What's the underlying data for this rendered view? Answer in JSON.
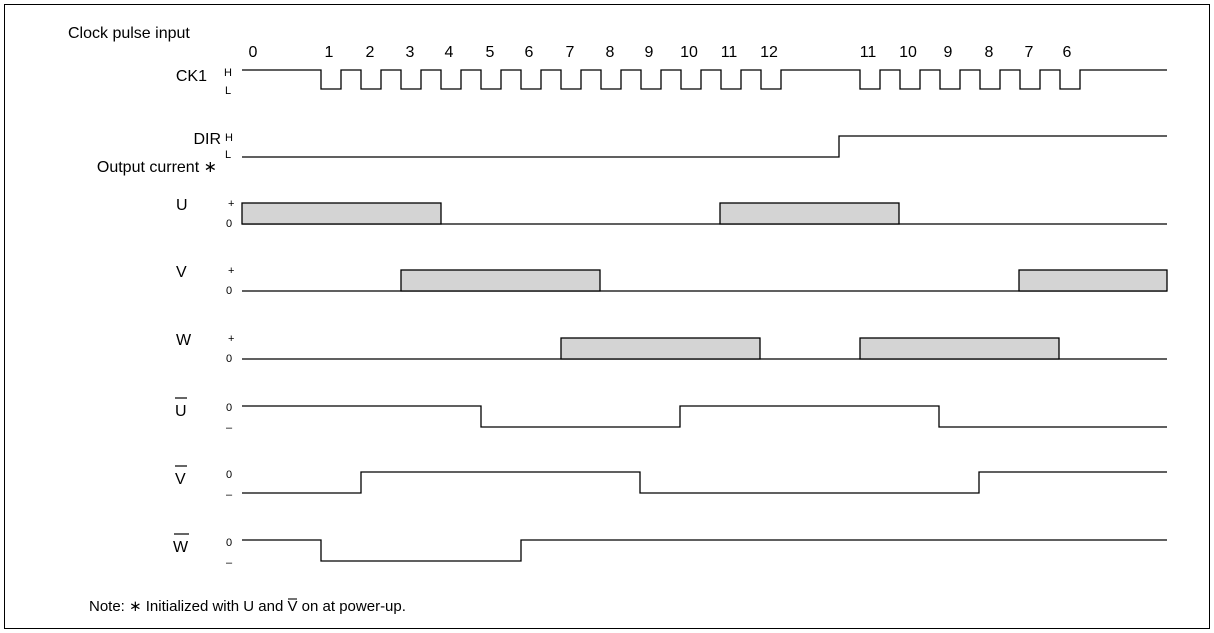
{
  "header": {
    "clock_label": "Clock pulse input",
    "output_label": "Output current ∗"
  },
  "clock_ticks": [
    "0",
    "1",
    "2",
    "3",
    "4",
    "5",
    "6",
    "7",
    "8",
    "9",
    "10",
    "11",
    "12",
    "11",
    "10",
    "9",
    "8",
    "7",
    "6"
  ],
  "signals": {
    "ck1": {
      "name": "CK1",
      "hi": "H",
      "lo": "L"
    },
    "dir": {
      "name": "DIR",
      "hi": "H",
      "lo": "L"
    },
    "u": {
      "name": "U",
      "hi": "+",
      "lo": "0"
    },
    "v": {
      "name": "V",
      "hi": "+",
      "lo": "0"
    },
    "w": {
      "name": "W",
      "hi": "+",
      "lo": "0"
    },
    "ubar": {
      "name": "U",
      "hi": "0",
      "lo": "–"
    },
    "vbar": {
      "name": "V",
      "hi": "0",
      "lo": "–"
    },
    "wbar": {
      "name": "W",
      "hi": "0",
      "lo": "–"
    }
  },
  "note": {
    "prefix": "Note:  ∗ Initialized with U and ",
    "vbar": "V",
    "suffix": " on at power-up."
  }
}
